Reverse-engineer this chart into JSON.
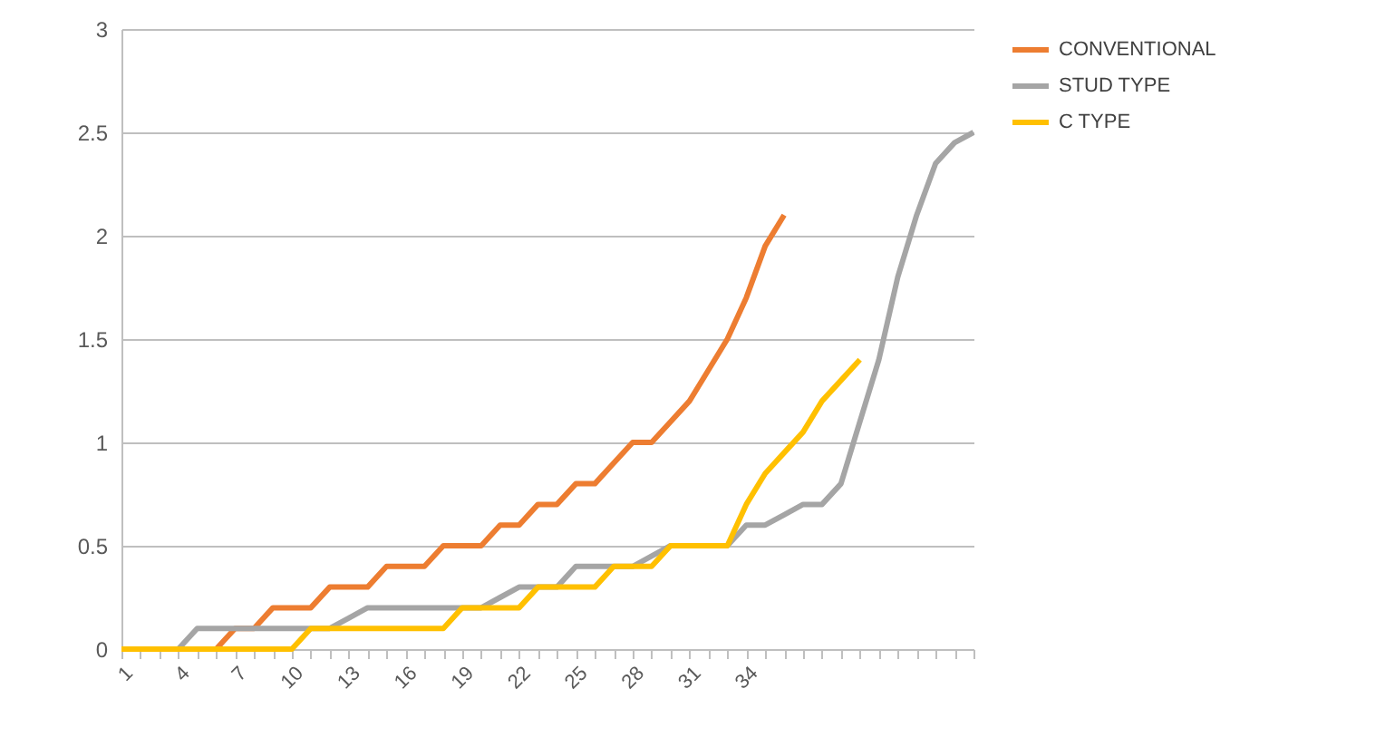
{
  "chart_data": {
    "type": "line",
    "categories": [
      "1",
      null,
      null,
      "4",
      null,
      null,
      "7",
      null,
      null,
      "10",
      null,
      null,
      "13",
      null,
      null,
      "16",
      null,
      null,
      "19",
      null,
      null,
      "22",
      null,
      null,
      "25",
      null,
      null,
      "28",
      null,
      null,
      "31",
      null,
      null,
      "34",
      null,
      null,
      null,
      null,
      null,
      null,
      null,
      null,
      null,
      null,
      null,
      null
    ],
    "series": [
      {
        "name": "CONVENTIONAL",
        "color": "#ed7d31",
        "values": [
          null,
          null,
          null,
          null,
          0,
          0,
          0.1,
          0.1,
          0.2,
          0.2,
          0.2,
          0.3,
          0.3,
          0.3,
          0.4,
          0.4,
          0.4,
          0.5,
          0.5,
          0.5,
          0.6,
          0.6,
          0.7,
          0.7,
          0.8,
          0.8,
          0.9,
          1.0,
          1.0,
          1.1,
          1.2,
          1.35,
          1.5,
          1.7,
          1.95,
          2.1,
          null,
          null,
          null,
          null,
          null,
          null,
          null,
          null,
          null,
          null
        ]
      },
      {
        "name": "STUD TYPE",
        "color": "#a5a5a5",
        "values": [
          0,
          0,
          0,
          0,
          0.1,
          0.1,
          0.1,
          0.1,
          0.1,
          0.1,
          0.1,
          0.1,
          0.15,
          0.2,
          0.2,
          0.2,
          0.2,
          0.2,
          0.2,
          0.2,
          0.25,
          0.3,
          0.3,
          0.3,
          0.4,
          0.4,
          0.4,
          0.4,
          0.45,
          0.5,
          0.5,
          0.5,
          0.5,
          0.6,
          0.6,
          0.65,
          0.7,
          0.7,
          0.8,
          1.1,
          1.4,
          1.8,
          2.1,
          2.35,
          2.45,
          2.5
        ]
      },
      {
        "name": "C TYPE",
        "color": "#ffc000",
        "values": [
          0,
          0,
          0,
          0,
          0,
          0,
          0,
          0,
          0,
          0,
          0.1,
          0.1,
          0.1,
          0.1,
          0.1,
          0.1,
          0.1,
          0.1,
          0.2,
          0.2,
          0.2,
          0.2,
          0.3,
          0.3,
          0.3,
          0.3,
          0.4,
          0.4,
          0.4,
          0.5,
          0.5,
          0.5,
          0.5,
          0.7,
          0.85,
          0.95,
          1.05,
          1.2,
          1.3,
          1.4,
          null,
          null,
          null,
          null,
          null,
          null
        ]
      }
    ],
    "ylim": [
      0,
      3
    ],
    "yticks": [
      0,
      0.5,
      1,
      1.5,
      2,
      2.5,
      3
    ],
    "grid": "y",
    "legend": "right"
  }
}
